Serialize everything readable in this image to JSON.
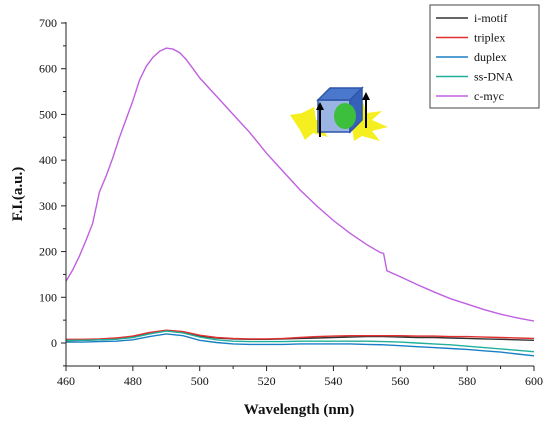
{
  "chart_data": {
    "type": "line",
    "title": "",
    "xlabel": "Wavelength (nm)",
    "ylabel": "F.I.(a.u.)",
    "xlim": [
      460,
      600
    ],
    "ylim": [
      -50,
      700
    ],
    "xticks": [
      460,
      480,
      500,
      520,
      540,
      560,
      580,
      600
    ],
    "yticks": [
      0,
      100,
      200,
      300,
      400,
      500,
      600,
      700
    ],
    "legend_position": "top-right",
    "grid": false,
    "series": [
      {
        "name": "i-motif",
        "color": "#333333",
        "points": [
          [
            460,
            5
          ],
          [
            465,
            6
          ],
          [
            470,
            7
          ],
          [
            475,
            9
          ],
          [
            480,
            13
          ],
          [
            485,
            21
          ],
          [
            490,
            27
          ],
          [
            495,
            24
          ],
          [
            500,
            15
          ],
          [
            505,
            11
          ],
          [
            510,
            9
          ],
          [
            515,
            8
          ],
          [
            520,
            8
          ],
          [
            525,
            9
          ],
          [
            530,
            10
          ],
          [
            535,
            11
          ],
          [
            540,
            12
          ],
          [
            545,
            13
          ],
          [
            550,
            14
          ],
          [
            555,
            14
          ],
          [
            560,
            13
          ],
          [
            565,
            12
          ],
          [
            570,
            12
          ],
          [
            575,
            11
          ],
          [
            580,
            10
          ],
          [
            585,
            9
          ],
          [
            590,
            8
          ],
          [
            595,
            7
          ],
          [
            600,
            6
          ]
        ]
      },
      {
        "name": "triplex",
        "color": "#e03030",
        "points": [
          [
            460,
            8
          ],
          [
            465,
            8
          ],
          [
            470,
            9
          ],
          [
            475,
            11
          ],
          [
            480,
            15
          ],
          [
            485,
            23
          ],
          [
            490,
            28
          ],
          [
            495,
            25
          ],
          [
            500,
            17
          ],
          [
            505,
            12
          ],
          [
            510,
            10
          ],
          [
            515,
            9
          ],
          [
            520,
            9
          ],
          [
            525,
            10
          ],
          [
            530,
            12
          ],
          [
            535,
            14
          ],
          [
            540,
            15
          ],
          [
            545,
            16
          ],
          [
            550,
            16
          ],
          [
            555,
            16
          ],
          [
            560,
            16
          ],
          [
            565,
            15
          ],
          [
            570,
            15
          ],
          [
            575,
            14
          ],
          [
            580,
            14
          ],
          [
            585,
            13
          ],
          [
            590,
            12
          ],
          [
            595,
            11
          ],
          [
            600,
            10
          ]
        ]
      },
      {
        "name": "duplex",
        "color": "#1a7fc4",
        "points": [
          [
            460,
            2
          ],
          [
            465,
            2
          ],
          [
            470,
            3
          ],
          [
            475,
            4
          ],
          [
            480,
            7
          ],
          [
            485,
            14
          ],
          [
            490,
            20
          ],
          [
            495,
            16
          ],
          [
            500,
            6
          ],
          [
            505,
            1
          ],
          [
            510,
            -2
          ],
          [
            515,
            -3
          ],
          [
            520,
            -3
          ],
          [
            525,
            -3
          ],
          [
            530,
            -2
          ],
          [
            535,
            -2
          ],
          [
            540,
            -2
          ],
          [
            545,
            -2
          ],
          [
            550,
            -3
          ],
          [
            555,
            -4
          ],
          [
            560,
            -6
          ],
          [
            565,
            -8
          ],
          [
            570,
            -10
          ],
          [
            575,
            -12
          ],
          [
            580,
            -14
          ],
          [
            585,
            -17
          ],
          [
            590,
            -20
          ],
          [
            595,
            -24
          ],
          [
            600,
            -28
          ]
        ]
      },
      {
        "name": "ss-DNA",
        "color": "#20b09a",
        "points": [
          [
            460,
            6
          ],
          [
            465,
            6
          ],
          [
            470,
            7
          ],
          [
            475,
            8
          ],
          [
            480,
            12
          ],
          [
            485,
            20
          ],
          [
            490,
            26
          ],
          [
            495,
            22
          ],
          [
            500,
            13
          ],
          [
            505,
            7
          ],
          [
            510,
            4
          ],
          [
            515,
            3
          ],
          [
            520,
            3
          ],
          [
            525,
            3
          ],
          [
            530,
            4
          ],
          [
            535,
            4
          ],
          [
            540,
            4
          ],
          [
            545,
            4
          ],
          [
            550,
            4
          ],
          [
            555,
            3
          ],
          [
            560,
            2
          ],
          [
            565,
            0
          ],
          [
            570,
            -2
          ],
          [
            575,
            -4
          ],
          [
            580,
            -7
          ],
          [
            585,
            -10
          ],
          [
            590,
            -13
          ],
          [
            595,
            -16
          ],
          [
            600,
            -19
          ]
        ]
      },
      {
        "name": "c-myc",
        "color": "#c060e0",
        "points": [
          [
            460,
            135
          ],
          [
            462,
            160
          ],
          [
            464,
            190
          ],
          [
            466,
            225
          ],
          [
            468,
            262
          ],
          [
            470,
            330
          ],
          [
            472,
            365
          ],
          [
            474,
            405
          ],
          [
            476,
            450
          ],
          [
            478,
            490
          ],
          [
            480,
            530
          ],
          [
            482,
            575
          ],
          [
            484,
            605
          ],
          [
            486,
            625
          ],
          [
            488,
            638
          ],
          [
            490,
            645
          ],
          [
            492,
            643
          ],
          [
            494,
            635
          ],
          [
            496,
            620
          ],
          [
            498,
            600
          ],
          [
            500,
            580
          ],
          [
            505,
            540
          ],
          [
            510,
            500
          ],
          [
            515,
            460
          ],
          [
            520,
            415
          ],
          [
            525,
            375
          ],
          [
            530,
            335
          ],
          [
            535,
            300
          ],
          [
            540,
            268
          ],
          [
            545,
            240
          ],
          [
            550,
            215
          ],
          [
            554,
            198
          ],
          [
            555,
            196
          ],
          [
            556,
            158
          ],
          [
            560,
            145
          ],
          [
            565,
            128
          ],
          [
            570,
            112
          ],
          [
            575,
            97
          ],
          [
            580,
            85
          ],
          [
            585,
            73
          ],
          [
            590,
            63
          ],
          [
            595,
            55
          ],
          [
            600,
            48
          ]
        ]
      }
    ]
  }
}
